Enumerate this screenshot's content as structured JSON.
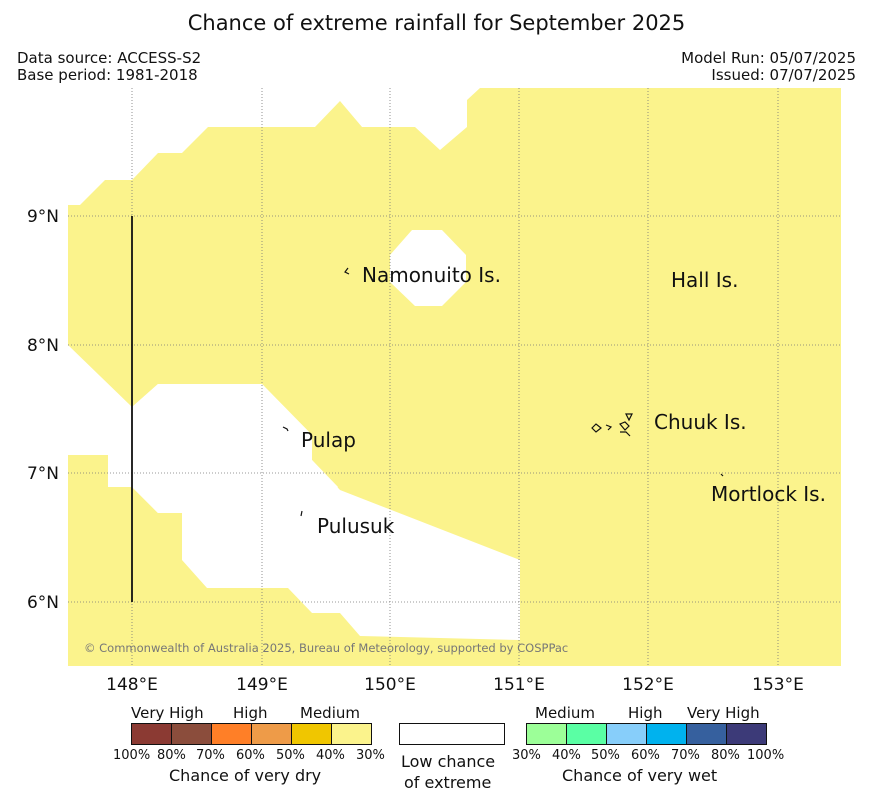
{
  "title": "Chance of extreme rainfall for September 2025",
  "data_source": "Data source: ACCESS-S2",
  "base_period": "Base period: 1981-2018",
  "model_run": "Model Run: 05/07/2025",
  "issued": "Issued: 07/07/2025",
  "credit": "© Commonwealth of Australia 2025, Bureau of Meteorology, supported by COSPPac",
  "map": {
    "lat_ticks": [
      "9°N",
      "8°N",
      "7°N",
      "6°N"
    ],
    "lon_ticks": [
      "148°E",
      "149°E",
      "150°E",
      "151°E",
      "152°E",
      "153°E"
    ],
    "extent": {
      "lon": [
        147.5,
        153.5
      ],
      "lat": [
        5.5,
        9.95
      ]
    },
    "fill_category": "30% - 40% chance of very dry",
    "fill_color": "#fbf38c",
    "islands": {
      "namonuito": "Namonuito Is.",
      "hall": "Hall Is.",
      "pulap": "Pulap",
      "chuuk": "Chuuk Is.",
      "pulusuk": "Pulusuk",
      "mortlock": "Mortlock Is."
    }
  },
  "legend": {
    "dry": {
      "levels": [
        "Very High",
        "High",
        "Medium"
      ],
      "percents": [
        "100%",
        "80%",
        "70%",
        "60%",
        "50%",
        "40%",
        "30%"
      ],
      "colors": [
        "#8b3a33",
        "#8b4d3c",
        "#ff7f27",
        "#ee9b48",
        "#f0c600",
        "#fbf38c"
      ],
      "title": "Chance of very dry"
    },
    "neutral": {
      "line1": "Low chance",
      "line2": "of extreme"
    },
    "wet": {
      "levels": [
        "Medium",
        "High",
        "Very High"
      ],
      "percents": [
        "30%",
        "40%",
        "50%",
        "60%",
        "70%",
        "80%",
        "100%"
      ],
      "colors": [
        "#9cff98",
        "#5affa4",
        "#87cefa",
        "#00b2ee",
        "#36609e",
        "#3c3a78"
      ],
      "title": "Chance of very wet"
    }
  }
}
